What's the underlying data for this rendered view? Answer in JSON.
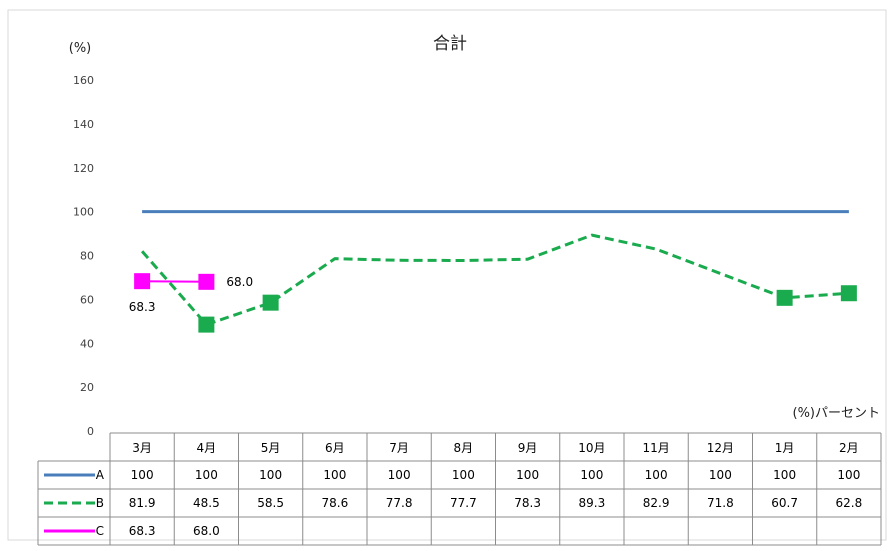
{
  "chart_data": {
    "type": "line",
    "title": "合計",
    "ylabel": "(%)",
    "unit_label": "(%)パーセント",
    "ylim": [
      0,
      160
    ],
    "yticks": [
      0,
      20,
      40,
      60,
      80,
      100,
      120,
      140,
      160
    ],
    "grid": false,
    "legend": "data-table",
    "categories": [
      "3月",
      "4月",
      "5月",
      "6月",
      "7月",
      "8月",
      "9月",
      "10月",
      "11月",
      "12月",
      "1月",
      "2月"
    ],
    "series": [
      {
        "name": "A",
        "color": "#4a7ebb",
        "style": "solid",
        "marker": "none",
        "values": [
          100,
          100,
          100,
          100,
          100,
          100,
          100,
          100,
          100,
          100,
          100,
          100
        ],
        "table": [
          "100",
          "100",
          "100",
          "100",
          "100",
          "100",
          "100",
          "100",
          "100",
          "100",
          "100",
          "100"
        ]
      },
      {
        "name": "B",
        "color": "#1aab4e",
        "style": "dashed",
        "marker": "square",
        "marker_indices": [
          1,
          2,
          10,
          11
        ],
        "values": [
          81.9,
          48.5,
          58.5,
          78.6,
          77.8,
          77.7,
          78.3,
          89.3,
          82.9,
          71.8,
          60.7,
          62.8
        ],
        "table": [
          "81.9",
          "48.5",
          "58.5",
          "78.6",
          "77.8",
          "77.7",
          "78.3",
          "89.3",
          "82.9",
          "71.8",
          "60.7",
          "62.8"
        ]
      },
      {
        "name": "C",
        "color": "#ff00ff",
        "style": "solid",
        "marker": "square",
        "marker_indices": [
          0,
          1
        ],
        "values": [
          68.3,
          68.0,
          null,
          null,
          null,
          null,
          null,
          null,
          null,
          null,
          null,
          null
        ],
        "table": [
          "68.3",
          "68.0",
          "",
          "",
          "",
          "",
          "",
          "",
          "",
          "",
          "",
          ""
        ],
        "data_labels": [
          "68.3",
          "68.0"
        ]
      }
    ]
  }
}
